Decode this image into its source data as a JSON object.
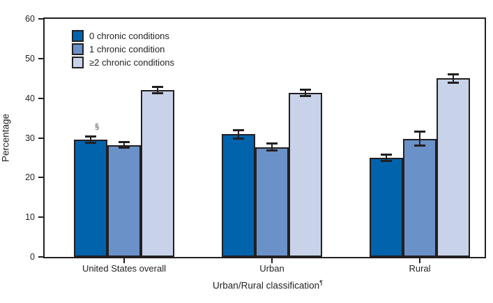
{
  "chart_data": {
    "type": "bar",
    "title": "",
    "categories": [
      "United States overall",
      "Urban",
      "Rural"
    ],
    "series": [
      {
        "name": "0 chronic conditions",
        "color": "#0063AC",
        "values": [
          29.5,
          30.9,
          25.0
        ],
        "errors": [
          0.9,
          1.1,
          0.9
        ]
      },
      {
        "name": "1 chronic condition",
        "color": "#6A91C8",
        "values": [
          28.2,
          27.7,
          29.8
        ],
        "errors": [
          0.8,
          1.0,
          1.9
        ]
      },
      {
        "name": "≥2 chronic conditions",
        "color": "#C8D3EA",
        "values": [
          42.1,
          41.4,
          45.0
        ],
        "errors": [
          0.9,
          0.9,
          1.1
        ]
      }
    ],
    "xlabel": "Urban/Rural classification",
    "xlabel_sup": "¶",
    "ylabel": "Percentage",
    "ylim": [
      0,
      60
    ],
    "yticks": [
      0,
      10,
      20,
      30,
      40,
      50,
      60
    ],
    "grid": false,
    "legend_position": "top-left-inside",
    "error_bars": true,
    "annotations": [
      {
        "text": "§",
        "category_index": 0,
        "series_index": 0,
        "position": "above-error-bar"
      }
    ]
  },
  "colors": {
    "axis": "#231f20",
    "text": "#231f20",
    "background": "#ffffff"
  }
}
